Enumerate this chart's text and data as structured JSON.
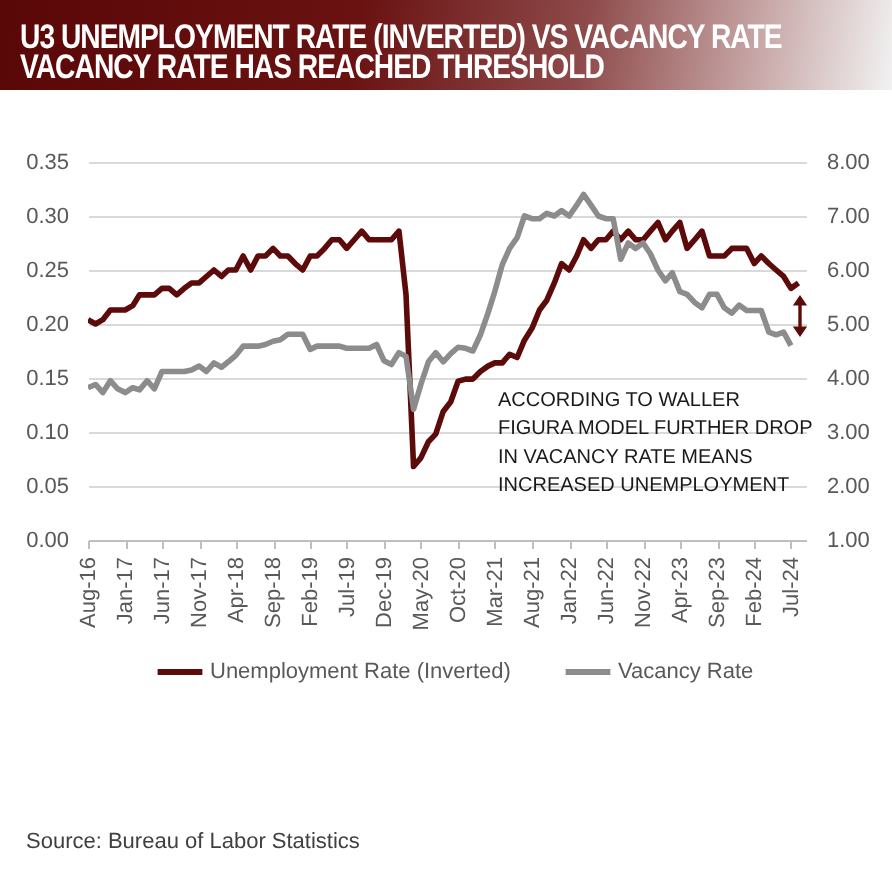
{
  "chart_data": {
    "type": "line",
    "title": "U3 UNEMPLOYMENT RATE (INVERTED) VS VACANCY RATE",
    "subtitle": "VACANCY RATE HAS REACHED THRESHOLD",
    "annotations": [
      "ACCORDING TO WALLER FIGURA MODEL FURTHER DROP IN VACANCY RATE MEANS INCREASED UNEMPLOYMENT",
      "Source: Bureau of Labor Statistics"
    ],
    "x": [
      "2016-08",
      "2016-09",
      "2016-10",
      "2016-11",
      "2016-12",
      "2017-01",
      "2017-02",
      "2017-03",
      "2017-04",
      "2017-05",
      "2017-06",
      "2017-07",
      "2017-08",
      "2017-09",
      "2017-10",
      "2017-11",
      "2017-12",
      "2018-01",
      "2018-02",
      "2018-03",
      "2018-04",
      "2018-05",
      "2018-06",
      "2018-07",
      "2018-08",
      "2018-09",
      "2018-10",
      "2018-11",
      "2018-12",
      "2019-01",
      "2019-02",
      "2019-03",
      "2019-04",
      "2019-05",
      "2019-06",
      "2019-07",
      "2019-08",
      "2019-09",
      "2019-10",
      "2019-11",
      "2019-12",
      "2020-01",
      "2020-02",
      "2020-03",
      "2020-04",
      "2020-05",
      "2020-06",
      "2020-07",
      "2020-08",
      "2020-09",
      "2020-10",
      "2020-11",
      "2020-12",
      "2021-01",
      "2021-02",
      "2021-03",
      "2021-04",
      "2021-05",
      "2021-06",
      "2021-07",
      "2021-08",
      "2021-09",
      "2021-10",
      "2021-11",
      "2021-12",
      "2022-01",
      "2022-02",
      "2022-03",
      "2022-04",
      "2022-05",
      "2022-06",
      "2022-07",
      "2022-08",
      "2022-09",
      "2022-10",
      "2022-11",
      "2022-12",
      "2023-01",
      "2023-02",
      "2023-03",
      "2023-04",
      "2023-05",
      "2023-06",
      "2023-07",
      "2023-08",
      "2023-09",
      "2023-10",
      "2023-11",
      "2023-12",
      "2024-01",
      "2024-02",
      "2024-03",
      "2024-04",
      "2024-05",
      "2024-06",
      "2024-07",
      "2024-08"
    ],
    "series": [
      {
        "name": "Unemployment Rate (Inverted)",
        "color": "#5c0a0a",
        "values": [
          0.204,
          0.2,
          0.204,
          0.213,
          0.213,
          0.213,
          0.217,
          0.227,
          0.227,
          0.227,
          0.233,
          0.233,
          0.227,
          0.233,
          0.238,
          0.238,
          0.244,
          0.25,
          0.244,
          0.25,
          0.25,
          0.263,
          0.25,
          0.263,
          0.263,
          0.27,
          0.263,
          0.263,
          0.256,
          0.25,
          0.263,
          0.263,
          0.27,
          0.278,
          0.278,
          0.27,
          0.278,
          0.286,
          0.278,
          0.278,
          0.278,
          0.278,
          0.286,
          0.227,
          0.068,
          0.076,
          0.091,
          0.098,
          0.119,
          0.128,
          0.147,
          0.149,
          0.149,
          0.156,
          0.161,
          0.164,
          0.164,
          0.172,
          0.169,
          0.185,
          0.196,
          0.213,
          0.222,
          0.238,
          0.256,
          0.25,
          0.263,
          0.278,
          0.27,
          0.278,
          0.278,
          0.286,
          0.278,
          0.286,
          0.278,
          0.278,
          0.286,
          0.294,
          0.278,
          0.286,
          0.294,
          0.27,
          0.278,
          0.286,
          0.263,
          0.263,
          0.263,
          0.27,
          0.27,
          0.27,
          0.256,
          0.263,
          0.256,
          0.25,
          0.244,
          0.233,
          0.238
        ]
      },
      {
        "name": "Vacancy Rate",
        "color": "#8c8c8c",
        "axis": "y2",
        "values": [
          3.82,
          3.88,
          3.73,
          3.95,
          3.8,
          3.73,
          3.82,
          3.78,
          3.95,
          3.8,
          4.12,
          4.12,
          4.12,
          4.12,
          4.15,
          4.22,
          4.12,
          4.28,
          4.2,
          4.3,
          4.42,
          4.59,
          4.59,
          4.59,
          4.62,
          4.68,
          4.71,
          4.81,
          4.81,
          4.81,
          4.53,
          4.59,
          4.59,
          4.59,
          4.59,
          4.55,
          4.55,
          4.55,
          4.55,
          4.62,
          4.32,
          4.25,
          4.47,
          4.4,
          3.42,
          3.88,
          4.3,
          4.47,
          4.3,
          4.45,
          4.57,
          4.55,
          4.5,
          4.8,
          5.2,
          5.6,
          6.1,
          6.4,
          6.6,
          7.0,
          6.95,
          6.95,
          7.05,
          7.0,
          7.1,
          7.0,
          7.2,
          7.4,
          7.2,
          7.0,
          6.95,
          6.95,
          6.2,
          6.5,
          6.4,
          6.5,
          6.3,
          6.0,
          5.8,
          5.95,
          5.6,
          5.55,
          5.4,
          5.3,
          5.55,
          5.55,
          5.3,
          5.2,
          5.35,
          5.25,
          5.25,
          5.25,
          4.85,
          4.8,
          4.85,
          4.6,
          null
        ]
      }
    ],
    "xlim": [
      "2016-08",
      "2024-09"
    ],
    "xticks": [
      {
        "value": "2016-08",
        "label": "Aug-16"
      },
      {
        "value": "2017-01",
        "label": "Jan-17"
      },
      {
        "value": "2017-06",
        "label": "Jun-17"
      },
      {
        "value": "2017-11",
        "label": "Nov-17"
      },
      {
        "value": "2018-04",
        "label": "Apr-18"
      },
      {
        "value": "2018-09",
        "label": "Sep-18"
      },
      {
        "value": "2019-02",
        "label": "Feb-19"
      },
      {
        "value": "2019-07",
        "label": "Jul-19"
      },
      {
        "value": "2019-12",
        "label": "Dec-19"
      },
      {
        "value": "2020-05",
        "label": "May-20"
      },
      {
        "value": "2020-10",
        "label": "Oct-20"
      },
      {
        "value": "2021-03",
        "label": "Mar-21"
      },
      {
        "value": "2021-08",
        "label": "Aug-21"
      },
      {
        "value": "2022-01",
        "label": "Jan-22"
      },
      {
        "value": "2022-06",
        "label": "Jun-22"
      },
      {
        "value": "2022-11",
        "label": "Nov-22"
      },
      {
        "value": "2023-04",
        "label": "Apr-23"
      },
      {
        "value": "2023-09",
        "label": "Sep-23"
      },
      {
        "value": "2024-02",
        "label": "Feb-24"
      },
      {
        "value": "2024-07",
        "label": "Jul-24"
      }
    ],
    "ylim": [
      0,
      0.35
    ],
    "yticks": [
      {
        "value": 0,
        "label": "0.00"
      },
      0.05,
      {
        "value": 0.1,
        "label": "0.10"
      },
      0.15,
      {
        "value": 0.2,
        "label": "0.20"
      },
      0.25,
      {
        "value": 0.3,
        "label": "0.30"
      },
      0.35
    ],
    "y2lim": [
      1,
      8
    ],
    "y2ticks": [
      {
        "value": 1,
        "label": "1.00"
      },
      {
        "value": 2,
        "label": "2.00"
      },
      {
        "value": 3,
        "label": "3.00"
      },
      {
        "value": 4,
        "label": "4.00"
      },
      {
        "value": 5,
        "label": "5.00"
      },
      {
        "value": 6,
        "label": "6.00"
      },
      {
        "value": 7,
        "label": "7.00"
      },
      {
        "value": 8,
        "label": "8.00"
      }
    ],
    "grid": "y",
    "legend": "bottom"
  }
}
